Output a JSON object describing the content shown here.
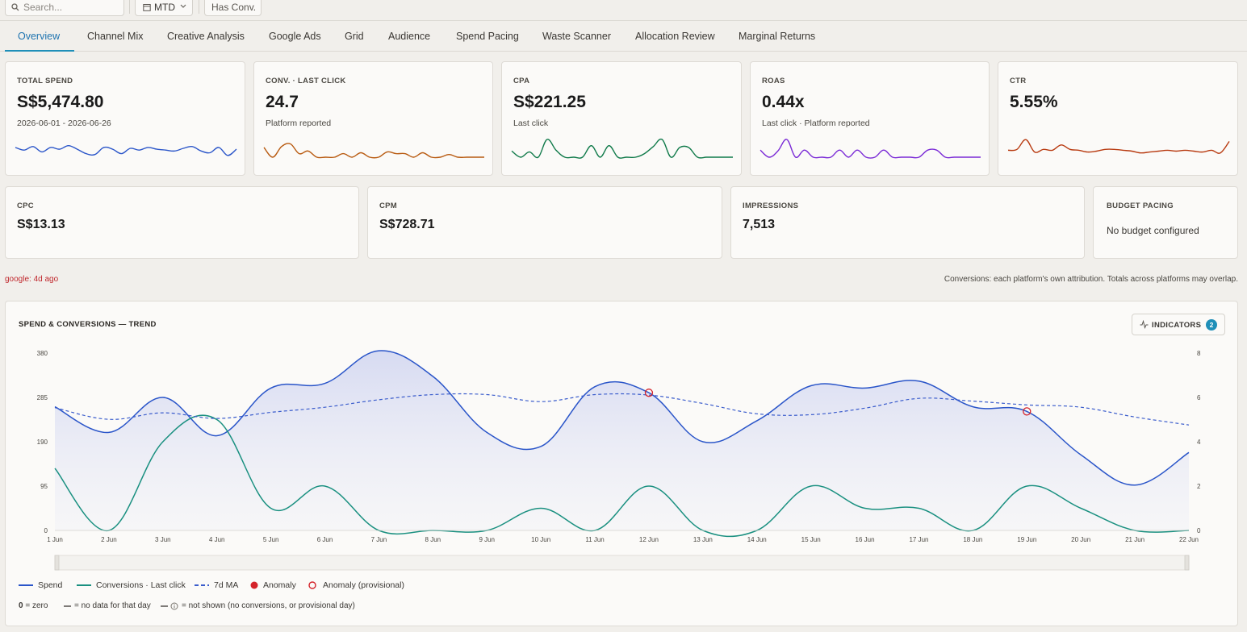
{
  "toolbar": {
    "search_placeholder": "Search...",
    "period_label": "MTD",
    "filter_label": "Has Conv."
  },
  "tabs": [
    {
      "label": "Overview",
      "active": true
    },
    {
      "label": "Channel Mix"
    },
    {
      "label": "Creative Analysis"
    },
    {
      "label": "Google Ads"
    },
    {
      "label": "Grid"
    },
    {
      "label": "Audience"
    },
    {
      "label": "Spend Pacing"
    },
    {
      "label": "Waste Scanner"
    },
    {
      "label": "Allocation Review"
    },
    {
      "label": "Marginal Returns"
    }
  ],
  "kpis": [
    {
      "label": "TOTAL SPEND",
      "value": "S$5,474.80",
      "sub": "2026-06-01 - 2026-06-26",
      "color": "#2a55c9",
      "spark": [
        0.55,
        0.4,
        0.6,
        0.3,
        0.55,
        0.45,
        0.65,
        0.45,
        0.2,
        0.15,
        0.55,
        0.45,
        0.2,
        0.5,
        0.4,
        0.55,
        0.45,
        0.4,
        0.35,
        0.5,
        0.6,
        0.35,
        0.25,
        0.55,
        0.1,
        0.45
      ]
    },
    {
      "label": "CONV. · LAST CLICK",
      "value": "24.7",
      "sub": "Platform reported",
      "color": "#b85a10",
      "spark": [
        0.55,
        0.0,
        0.6,
        0.75,
        0.2,
        0.35,
        0.0,
        0.0,
        0.0,
        0.2,
        0.0,
        0.25,
        0.0,
        0.0,
        0.3,
        0.2,
        0.2,
        0.0,
        0.25,
        0.0,
        0.0,
        0.15,
        0.0,
        0.0,
        0.0,
        0.0
      ]
    },
    {
      "label": "CPA",
      "value": "S$221.25",
      "sub": "Last click",
      "color": "#107a4a",
      "spark": [
        0.35,
        0.0,
        0.3,
        0.0,
        1.0,
        0.4,
        0.0,
        0.0,
        0.0,
        0.65,
        0.0,
        0.65,
        0.0,
        0.0,
        0.0,
        0.2,
        0.6,
        1.0,
        0.0,
        0.55,
        0.55,
        0.0,
        0.0,
        0.0,
        0.0,
        0.0
      ]
    },
    {
      "label": "ROAS",
      "value": "0.44x",
      "sub_parts": [
        "Last click",
        "Platform reported"
      ],
      "color": "#7a2ad6",
      "spark": [
        0.4,
        0.0,
        0.35,
        1.0,
        0.0,
        0.4,
        0.0,
        0.0,
        0.0,
        0.4,
        0.0,
        0.4,
        0.0,
        0.0,
        0.4,
        0.0,
        0.0,
        0.0,
        0.0,
        0.4,
        0.4,
        0.0,
        0.0,
        0.0,
        0.0,
        0.0
      ]
    },
    {
      "label": "CTR",
      "value": "5.55%",
      "sub": "",
      "color": "#b83a10",
      "spark": [
        0.3,
        0.35,
        0.9,
        0.2,
        0.35,
        0.3,
        0.6,
        0.35,
        0.3,
        0.2,
        0.25,
        0.35,
        0.35,
        0.3,
        0.25,
        0.15,
        0.2,
        0.25,
        0.3,
        0.25,
        0.3,
        0.25,
        0.2,
        0.3,
        0.15,
        0.8
      ]
    }
  ],
  "kpis2": [
    {
      "label": "CPC",
      "value": "S$13.13"
    },
    {
      "label": "CPM",
      "value": "S$728.71"
    },
    {
      "label": "IMPRESSIONS",
      "value": "7,513"
    }
  ],
  "budget": {
    "label": "BUDGET PACING",
    "message": "No budget configured"
  },
  "status": {
    "freshness": "google: 4d ago",
    "attribution_note": "Conversions: each platform's own attribution. Totals across platforms may overlap."
  },
  "trend": {
    "title": "SPEND & CONVERSIONS — TREND",
    "indicators_label": "INDICATORS",
    "indicators_count": "2"
  },
  "chart_data": {
    "type": "line",
    "title": "SPEND & CONVERSIONS — TREND",
    "categories": [
      "1 Jun",
      "2 Jun",
      "3 Jun",
      "4 Jun",
      "5 Jun",
      "6 Jun",
      "7 Jun",
      "8 Jun",
      "9 Jun",
      "10 Jun",
      "11 Jun",
      "12 Jun",
      "13 Jun",
      "14 Jun",
      "15 Jun",
      "16 Jun",
      "17 Jun",
      "18 Jun",
      "19 Jun",
      "20 Jun",
      "21 Jun",
      "22 Jun"
    ],
    "y_left": {
      "ticks": [
        0,
        95,
        190,
        285,
        380
      ],
      "range": [
        0,
        380
      ]
    },
    "y_right": {
      "ticks": [
        0,
        2,
        4,
        6,
        8
      ],
      "range": [
        0,
        8
      ]
    },
    "series": [
      {
        "name": "Spend",
        "axis": "left",
        "color": "#2a55c9",
        "area": true,
        "values": [
          265,
          210,
          285,
          203,
          305,
          315,
          385,
          330,
          210,
          180,
          308,
          295,
          190,
          235,
          310,
          305,
          320,
          265,
          255,
          162,
          97,
          167
        ]
      },
      {
        "name": "Conversions · Last click",
        "axis": "right",
        "color": "#1a9080",
        "values": [
          2.8,
          0,
          4.0,
          5.0,
          1.0,
          2.0,
          0,
          0,
          0,
          1.0,
          0,
          2.0,
          0,
          0,
          2.0,
          1.0,
          1.0,
          0,
          2.0,
          1.0,
          0,
          0
        ]
      },
      {
        "name": "7d MA",
        "axis": "left",
        "color": "#3a5ccc",
        "dashed": true,
        "values": [
          263,
          238,
          252,
          240,
          253,
          264,
          280,
          291,
          291,
          276,
          291,
          290,
          272,
          250,
          248,
          262,
          283,
          277,
          269,
          264,
          243,
          226
        ]
      }
    ],
    "anomalies": [
      {
        "name": "Anomaly (provisional)",
        "x": "12 Jun",
        "series": "Spend",
        "y": 295
      },
      {
        "name": "Anomaly (provisional)",
        "x": "19 Jun",
        "series": "Spend",
        "y": 255
      }
    ]
  },
  "legend": [
    {
      "label": "Spend",
      "kind": "line",
      "color": "#2a55c9"
    },
    {
      "label": "Conversions · Last click",
      "kind": "line",
      "color": "#1a9080"
    },
    {
      "label": "7d MA",
      "kind": "dash",
      "color": "#3a5ccc"
    },
    {
      "label": "Anomaly",
      "kind": "dot",
      "color": "#d4232a"
    },
    {
      "label": "Anomaly (provisional)",
      "kind": "ring",
      "color": "#d4232a"
    }
  ],
  "key": {
    "zero_symbol": "0",
    "zero_text": "= zero",
    "nodata_text": "= no data for that day",
    "notshown_text": "= not shown (no conversions, or provisional day)"
  }
}
